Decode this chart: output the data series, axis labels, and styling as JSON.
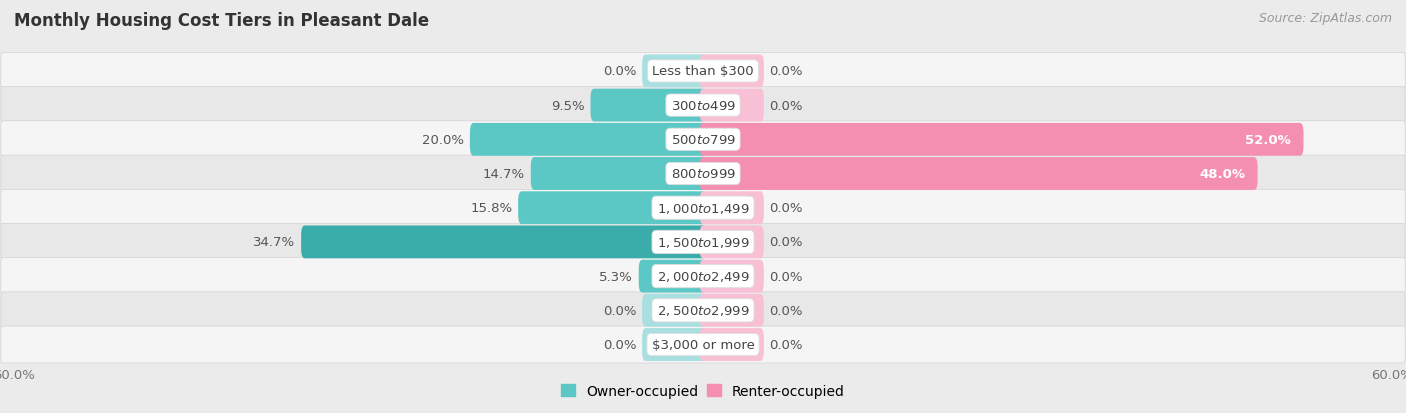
{
  "title": "Monthly Housing Cost Tiers in Pleasant Dale",
  "source": "Source: ZipAtlas.com",
  "categories": [
    "Less than $300",
    "$300 to $499",
    "$500 to $799",
    "$800 to $999",
    "$1,000 to $1,499",
    "$1,500 to $1,999",
    "$2,000 to $2,499",
    "$2,500 to $2,999",
    "$3,000 or more"
  ],
  "owner_values": [
    0.0,
    9.5,
    20.0,
    14.7,
    15.8,
    34.7,
    5.3,
    0.0,
    0.0
  ],
  "renter_values": [
    0.0,
    0.0,
    52.0,
    48.0,
    0.0,
    0.0,
    0.0,
    0.0,
    0.0
  ],
  "owner_color": "#5BC8C5",
  "renter_color": "#F48FB1",
  "owner_color_dark": "#3AACAA",
  "owner_color_zero": "#A8DFE0",
  "renter_color_zero": "#F9C0D5",
  "axis_limit": 60.0,
  "background_color": "#ebebeb",
  "row_bg_light": "#f5f5f5",
  "row_bg_dark": "#e8e8e8",
  "title_fontsize": 12,
  "label_fontsize": 9.5,
  "tick_fontsize": 9.5,
  "legend_fontsize": 10,
  "source_fontsize": 9
}
